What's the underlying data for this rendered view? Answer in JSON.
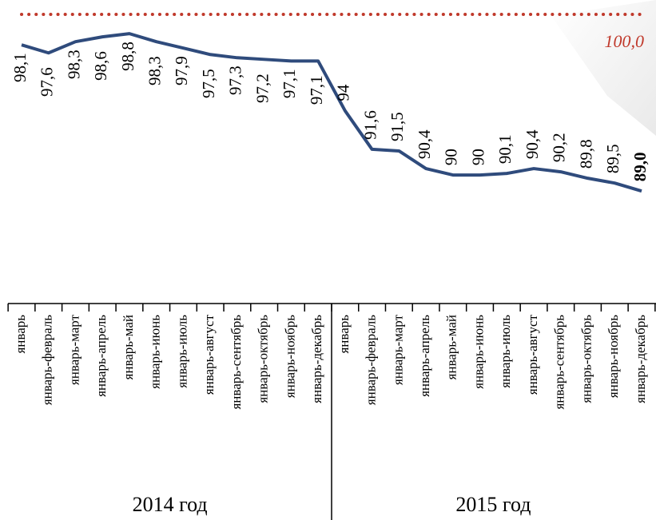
{
  "chart_data": {
    "type": "line",
    "categories": [
      "январь",
      "январь-февраль",
      "январь-март",
      "январь-апрель",
      "январь-май",
      "январь-июнь",
      "январь-июль",
      "январь-август",
      "январь-сентябрь",
      "январь-октябрь",
      "январь-ноябрь",
      "январь-декабрь",
      "январь",
      "январь-февраль",
      "январь-март",
      "январь-апрель",
      "январь-май",
      "январь-июнь",
      "январь-июль",
      "январь-август",
      "январь-сентябрь",
      "январь-октябрь",
      "январь-ноябрь",
      "январь-декабрь"
    ],
    "groups": [
      "2014 год",
      "2015 год"
    ],
    "series": [
      {
        "color": "#2f4b7c",
        "values": [
          98.1,
          97.6,
          98.3,
          98.6,
          98.8,
          98.3,
          97.9,
          97.5,
          97.3,
          97.2,
          97.1,
          97.1,
          94,
          91.6,
          91.5,
          90.4,
          90,
          90,
          90.1,
          90.4,
          90.2,
          89.8,
          89.5,
          89.0
        ],
        "value_labels": [
          "98,1",
          "97,6",
          "98,3",
          "98,6",
          "98,8",
          "98,3",
          "97,9",
          "97,5",
          "97,3",
          "97,2",
          "97,1",
          "97,1",
          "94",
          "91,6",
          "91,5",
          "90,4",
          "90",
          "90",
          "90,1",
          "90,4",
          "90,2",
          "89,8",
          "89,5",
          "89,0"
        ]
      }
    ],
    "reference_line": {
      "value": 100,
      "label": "100,0",
      "color": "#c0392b"
    },
    "ylim": [
      82,
      100
    ]
  }
}
